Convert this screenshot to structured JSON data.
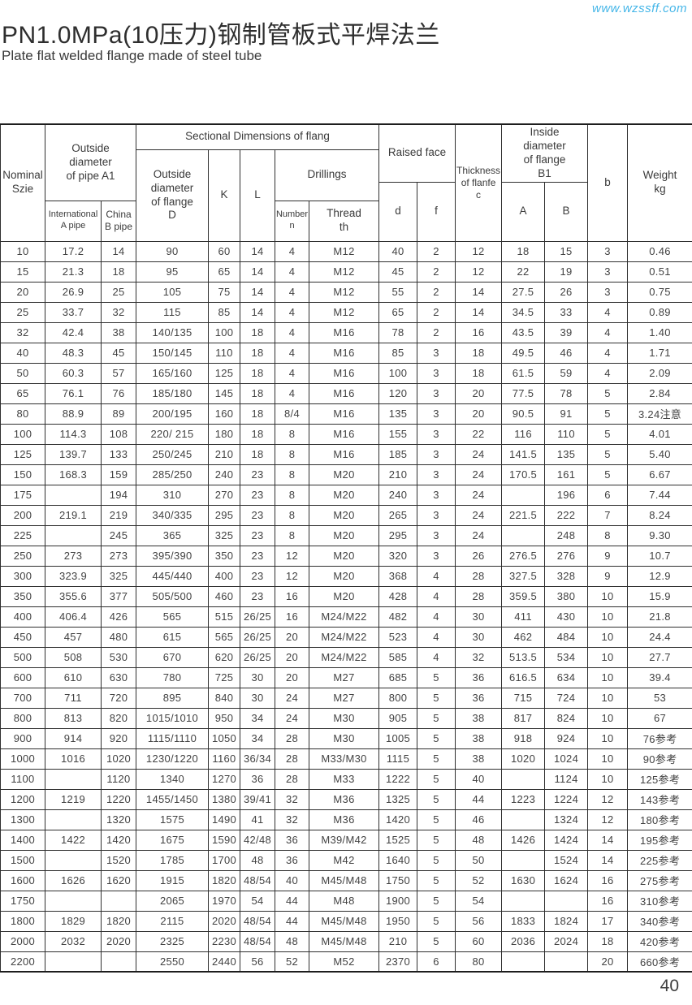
{
  "page": {
    "url": "www.wzssff.com",
    "title": "PN1.0MPa(10压力)钢制管板式平焊法兰",
    "subtitle": "Plate flat welded flange made of steel tube",
    "page_number": "40",
    "accent_color": "#45b6e8"
  },
  "table": {
    "headers": {
      "nominal_size": "Nominal\nSzie",
      "outside_pipe_a1": "Outside\ndiameter\nof pipe A1",
      "international_a_pipe": "International\nA pipe",
      "china_b_pipe": "China\nB pipe",
      "sectional_dimensions": "Sectional Dimensions of flang",
      "outside_flange_d": "Outside\ndiameter\nof flange\nD",
      "k": "K",
      "l": "L",
      "drillings": "Drillings",
      "number_n": "Number\nn",
      "thread_th": "Thread\nth",
      "raised_face": "Raised face",
      "d": "d",
      "f": "f",
      "thickness_c": "Thickness\nof flanfe\nc",
      "inside_diameter_b1": "Inside\ndiameter\nof flange\nB1",
      "a": "A",
      "b_upper": "B",
      "b_lower": "b",
      "weight_kg": "Weight\nkg"
    },
    "rows": [
      [
        "10",
        "17.2",
        "14",
        "90",
        "60",
        "14",
        "4",
        "M12",
        "40",
        "2",
        "12",
        "18",
        "15",
        "3",
        "0.46"
      ],
      [
        "15",
        "21.3",
        "18",
        "95",
        "65",
        "14",
        "4",
        "M12",
        "45",
        "2",
        "12",
        "22",
        "19",
        "3",
        "0.51"
      ],
      [
        "20",
        "26.9",
        "25",
        "105",
        "75",
        "14",
        "4",
        "M12",
        "55",
        "2",
        "14",
        "27.5",
        "26",
        "3",
        "0.75"
      ],
      [
        "25",
        "33.7",
        "32",
        "115",
        "85",
        "14",
        "4",
        "M12",
        "65",
        "2",
        "14",
        "34.5",
        "33",
        "4",
        "0.89"
      ],
      [
        "32",
        "42.4",
        "38",
        "140/135",
        "100",
        "18",
        "4",
        "M16",
        "78",
        "2",
        "16",
        "43.5",
        "39",
        "4",
        "1.40"
      ],
      [
        "40",
        "48.3",
        "45",
        "150/145",
        "110",
        "18",
        "4",
        "M16",
        "85",
        "3",
        "18",
        "49.5",
        "46",
        "4",
        "1.71"
      ],
      [
        "50",
        "60.3",
        "57",
        "165/160",
        "125",
        "18",
        "4",
        "M16",
        "100",
        "3",
        "18",
        "61.5",
        "59",
        "4",
        "2.09"
      ],
      [
        "65",
        "76.1",
        "76",
        "185/180",
        "145",
        "18",
        "4",
        "M16",
        "120",
        "3",
        "20",
        "77.5",
        "78",
        "5",
        "2.84"
      ],
      [
        "80",
        "88.9",
        "89",
        "200/195",
        "160",
        "18",
        "8/4",
        "M16",
        "135",
        "3",
        "20",
        "90.5",
        "91",
        "5",
        "3.24注意"
      ],
      [
        "100",
        "114.3",
        "108",
        "220/ 215",
        "180",
        "18",
        "8",
        "M16",
        "155",
        "3",
        "22",
        "116",
        "110",
        "5",
        "4.01"
      ],
      [
        "125",
        "139.7",
        "133",
        "250/245",
        "210",
        "18",
        "8",
        "M16",
        "185",
        "3",
        "24",
        "141.5",
        "135",
        "5",
        "5.40"
      ],
      [
        "150",
        "168.3",
        "159",
        "285/250",
        "240",
        "23",
        "8",
        "M20",
        "210",
        "3",
        "24",
        "170.5",
        "161",
        "5",
        "6.67"
      ],
      [
        "175",
        "",
        "194",
        "310",
        "270",
        "23",
        "8",
        "M20",
        "240",
        "3",
        "24",
        "",
        "196",
        "6",
        "7.44"
      ],
      [
        "200",
        "219.1",
        "219",
        "340/335",
        "295",
        "23",
        "8",
        "M20",
        "265",
        "3",
        "24",
        "221.5",
        "222",
        "7",
        "8.24"
      ],
      [
        "225",
        "",
        "245",
        "365",
        "325",
        "23",
        "8",
        "M20",
        "295",
        "3",
        "24",
        "",
        "248",
        "8",
        "9.30"
      ],
      [
        "250",
        "273",
        "273",
        "395/390",
        "350",
        "23",
        "12",
        "M20",
        "320",
        "3",
        "26",
        "276.5",
        "276",
        "9",
        "10.7"
      ],
      [
        "300",
        "323.9",
        "325",
        "445/440",
        "400",
        "23",
        "12",
        "M20",
        "368",
        "4",
        "28",
        "327.5",
        "328",
        "9",
        "12.9"
      ],
      [
        "350",
        "355.6",
        "377",
        "505/500",
        "460",
        "23",
        "16",
        "M20",
        "428",
        "4",
        "28",
        "359.5",
        "380",
        "10",
        "15.9"
      ],
      [
        "400",
        "406.4",
        "426",
        "565",
        "515",
        "26/25",
        "16",
        "M24/M22",
        "482",
        "4",
        "30",
        "411",
        "430",
        "10",
        "21.8"
      ],
      [
        "450",
        "457",
        "480",
        "615",
        "565",
        "26/25",
        "20",
        "M24/M22",
        "523",
        "4",
        "30",
        "462",
        "484",
        "10",
        "24.4"
      ],
      [
        "500",
        "508",
        "530",
        "670",
        "620",
        "26/25",
        "20",
        "M24/M22",
        "585",
        "4",
        "32",
        "513.5",
        "534",
        "10",
        "27.7"
      ],
      [
        "600",
        "610",
        "630",
        "780",
        "725",
        "30",
        "20",
        "M27",
        "685",
        "5",
        "36",
        "616.5",
        "634",
        "10",
        "39.4"
      ],
      [
        "700",
        "711",
        "720",
        "895",
        "840",
        "30",
        "24",
        "M27",
        "800",
        "5",
        "36",
        "715",
        "724",
        "10",
        "53"
      ],
      [
        "800",
        "813",
        "820",
        "1015/1010",
        "950",
        "34",
        "24",
        "M30",
        "905",
        "5",
        "38",
        "817",
        "824",
        "10",
        "67"
      ],
      [
        "900",
        "914",
        "920",
        "1115/1110",
        "1050",
        "34",
        "28",
        "M30",
        "1005",
        "5",
        "38",
        "918",
        "924",
        "10",
        "76参考"
      ],
      [
        "1000",
        "1016",
        "1020",
        "1230/1220",
        "1160",
        "36/34",
        "28",
        "M33/M30",
        "1115",
        "5",
        "38",
        "1020",
        "1024",
        "10",
        "90参考"
      ],
      [
        "1100",
        "",
        "1120",
        "1340",
        "1270",
        "36",
        "28",
        "M33",
        "1222",
        "5",
        "40",
        "",
        "1124",
        "10",
        "125参考"
      ],
      [
        "1200",
        "1219",
        "1220",
        "1455/1450",
        "1380",
        "39/41",
        "32",
        "M36",
        "1325",
        "5",
        "44",
        "1223",
        "1224",
        "12",
        "143参考"
      ],
      [
        "1300",
        "",
        "1320",
        "1575",
        "1490",
        "41",
        "32",
        "M36",
        "1420",
        "5",
        "46",
        "",
        "1324",
        "12",
        "180参考"
      ],
      [
        "1400",
        "1422",
        "1420",
        "1675",
        "1590",
        "42/48",
        "36",
        "M39/M42",
        "1525",
        "5",
        "48",
        "1426",
        "1424",
        "14",
        "195参考"
      ],
      [
        "1500",
        "",
        "1520",
        "1785",
        "1700",
        "48",
        "36",
        "M42",
        "1640",
        "5",
        "50",
        "",
        "1524",
        "14",
        "225参考"
      ],
      [
        "1600",
        "1626",
        "1620",
        "1915",
        "1820",
        "48/54",
        "40",
        "M45/M48",
        "1750",
        "5",
        "52",
        "1630",
        "1624",
        "16",
        "275参考"
      ],
      [
        "1750",
        "",
        "",
        "2065",
        "1970",
        "54",
        "44",
        "M48",
        "1900",
        "5",
        "54",
        "",
        "",
        "16",
        "310参考"
      ],
      [
        "1800",
        "1829",
        "1820",
        "2115",
        "2020",
        "48/54",
        "44",
        "M45/M48",
        "1950",
        "5",
        "56",
        "1833",
        "1824",
        "17",
        "340参考"
      ],
      [
        "2000",
        "2032",
        "2020",
        "2325",
        "2230",
        "48/54",
        "48",
        "M45/M48",
        "210",
        "5",
        "60",
        "2036",
        "2024",
        "18",
        "420参考"
      ],
      [
        "2200",
        "",
        "",
        "2550",
        "2440",
        "56",
        "52",
        "M52",
        "2370",
        "6",
        "80",
        "",
        "",
        "20",
        "660参考"
      ]
    ]
  }
}
